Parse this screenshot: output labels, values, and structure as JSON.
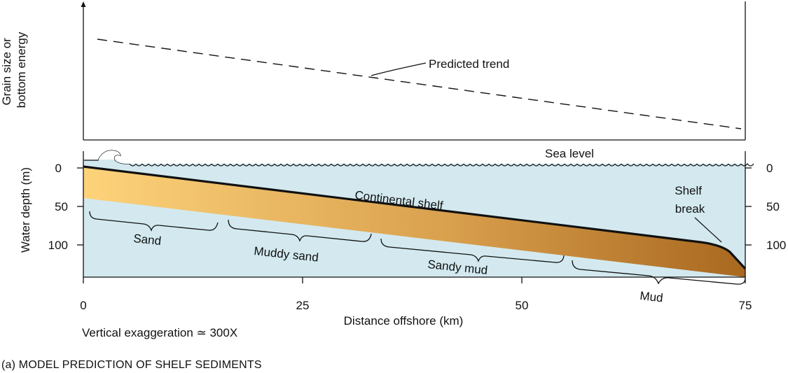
{
  "top_panel": {
    "ylabel_line1": "Grain size or",
    "ylabel_line2": "bottom energy",
    "trend_label": "Predicted trend"
  },
  "bottom_panel": {
    "sea_level_label": "Sea level",
    "shelf_label": "Continental shelf",
    "shelf_break_line1": "Shelf",
    "shelf_break_line2": "break",
    "ylabel": "Water depth (m)",
    "xlabel": "Distance offshore (km)",
    "exaggeration": "Vertical exaggeration ≃ 300X",
    "depth_ticks": [
      "0",
      "50",
      "100"
    ],
    "distance_ticks": [
      "0",
      "25",
      "50",
      "75"
    ]
  },
  "sediments": [
    {
      "name": "Sand"
    },
    {
      "name": "Muddy sand"
    },
    {
      "name": "Sandy mud"
    },
    {
      "name": "Mud"
    }
  ],
  "caption": "(a) MODEL PREDICTION OF SHELF SEDIMENTS",
  "colors": {
    "water": "#d3e9ef",
    "sediment_light": "#fdd37a",
    "sediment_dark": "#a9681f",
    "line": "#111111"
  }
}
